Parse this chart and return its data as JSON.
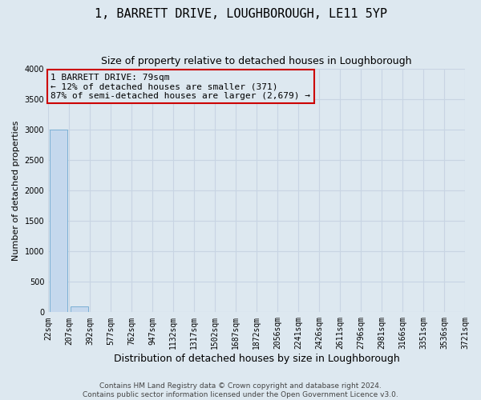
{
  "title": "1, BARRETT DRIVE, LOUGHBOROUGH, LE11 5YP",
  "subtitle": "Size of property relative to detached houses in Loughborough",
  "xlabel": "Distribution of detached houses by size in Loughborough",
  "ylabel": "Number of detached properties",
  "bar_values": [
    3000,
    100,
    0,
    0,
    0,
    0,
    0,
    0,
    0,
    0,
    0,
    0,
    0,
    0,
    0,
    0,
    0,
    0,
    0,
    0
  ],
  "x_labels": [
    "22sqm",
    "207sqm",
    "392sqm",
    "577sqm",
    "762sqm",
    "947sqm",
    "1132sqm",
    "1317sqm",
    "1502sqm",
    "1687sqm",
    "1872sqm",
    "2056sqm",
    "2241sqm",
    "2426sqm",
    "2611sqm",
    "2796sqm",
    "2981sqm",
    "3166sqm",
    "3351sqm",
    "3536sqm",
    "3721sqm"
  ],
  "ylim": [
    0,
    4000
  ],
  "bar_color": "#c5d8ed",
  "bar_edge_color": "#7aafd4",
  "grid_color": "#c8d4e3",
  "background_color": "#dde8f0",
  "annotation_text": "1 BARRETT DRIVE: 79sqm\n← 12% of detached houses are smaller (371)\n87% of semi-detached houses are larger (2,679) →",
  "annotation_box_color": "#cc0000",
  "footer_line1": "Contains HM Land Registry data © Crown copyright and database right 2024.",
  "footer_line2": "Contains public sector information licensed under the Open Government Licence v3.0.",
  "title_fontsize": 11,
  "subtitle_fontsize": 9,
  "ylabel_fontsize": 8,
  "xlabel_fontsize": 9,
  "annotation_fontsize": 8,
  "tick_fontsize": 7,
  "footer_fontsize": 6.5
}
